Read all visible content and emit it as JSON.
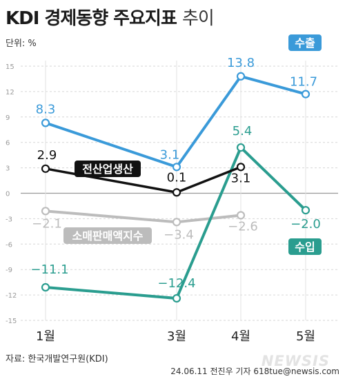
{
  "header": {
    "title_bold": "KDI 경제동향 주요지표",
    "title_thin": "추이",
    "unit": "단위: %"
  },
  "footer": {
    "source": "자료: 한국개발연구원(KDI)",
    "credit": "24.06.11 전진우 기자 618tue@newsis.com",
    "watermark": "NEWSIS"
  },
  "chart_data": {
    "type": "line",
    "categories": [
      "1월",
      "3월",
      "4월",
      "5월"
    ],
    "ylim": [
      -15,
      15
    ],
    "yticks": [
      "15",
      "12",
      "9",
      "6",
      "3",
      "0",
      "-3",
      "-6",
      "-9",
      "-12",
      "-15"
    ],
    "grid": true,
    "series": [
      {
        "name": "수출",
        "color": "#3a9ad9",
        "values": [
          8.3,
          3.1,
          13.8,
          11.7
        ],
        "labels": [
          "8.3",
          "3.1",
          "13.8",
          "11.7"
        ]
      },
      {
        "name": "수입",
        "color": "#2a9d8f",
        "values": [
          -11.1,
          -12.4,
          5.4,
          -2.0
        ],
        "labels": [
          "−11.1",
          "−12.4",
          "5.4",
          "−2.0"
        ]
      },
      {
        "name": "전산업생산",
        "color": "#111111",
        "values": [
          2.9,
          0.1,
          3.1,
          null
        ],
        "labels": [
          "2.9",
          "0.1",
          "3.1",
          null
        ]
      },
      {
        "name": "소매판매액지수",
        "color": "#bcbcbc",
        "values": [
          -2.1,
          -3.4,
          -2.6,
          null
        ],
        "labels": [
          "−2.1",
          "−3.4",
          "−2.6",
          null
        ]
      }
    ]
  }
}
